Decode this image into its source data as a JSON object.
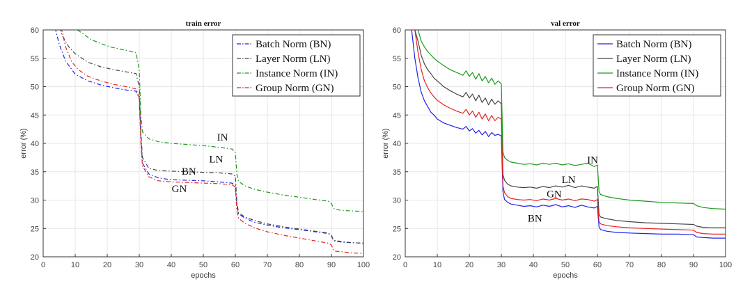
{
  "colors": {
    "bn": "#2020e8",
    "ln": "#444444",
    "in": "#1a9a1a",
    "gn": "#e82020"
  },
  "chart_data": [
    {
      "type": "line",
      "title": "train error",
      "xlabel": "epochs",
      "ylabel": "error (%)",
      "xlim": [
        0,
        100
      ],
      "ylim": [
        20,
        60
      ],
      "xticks": [
        0,
        10,
        20,
        30,
        40,
        50,
        60,
        70,
        80,
        90,
        100
      ],
      "yticks": [
        20,
        25,
        30,
        35,
        40,
        45,
        50,
        55,
        60
      ],
      "line_style": "dashdot",
      "legend_position": "top-right",
      "legend": [
        "Batch Norm (BN)",
        "Layer Norm (LN)",
        "Instance Norm (IN)",
        "Group Norm (GN)"
      ],
      "annotations": [
        {
          "text": "IN",
          "x": 56,
          "y": 40.5
        },
        {
          "text": "LN",
          "x": 54,
          "y": 36.6
        },
        {
          "text": "BN",
          "x": 45.5,
          "y": 34.5
        },
        {
          "text": "GN",
          "x": 42.5,
          "y": 31.4
        }
      ],
      "series": [
        {
          "name": "Batch Norm (BN)",
          "key": "bn",
          "x": [
            3,
            5,
            7,
            10,
            14,
            18,
            22,
            26,
            29,
            30,
            30.5,
            31,
            33,
            36,
            40,
            45,
            50,
            55,
            59,
            60,
            60.5,
            61,
            63,
            66,
            70,
            75,
            80,
            85,
            89,
            90,
            90.5,
            91,
            93,
            96,
            100
          ],
          "y": [
            62,
            57.5,
            54.5,
            52.2,
            51,
            50.3,
            49.8,
            49.4,
            49.2,
            48,
            41,
            36.5,
            34.6,
            33.9,
            33.6,
            33.5,
            33.4,
            33.2,
            33,
            32.6,
            29,
            27.6,
            26.8,
            26.1,
            25.6,
            25.1,
            24.8,
            24.4,
            24.1,
            23.7,
            23,
            22.8,
            22.6,
            22.5,
            22.4
          ]
        },
        {
          "name": "Layer Norm (LN)",
          "key": "ln",
          "x": [
            4,
            6,
            8,
            10,
            14,
            18,
            22,
            26,
            29,
            30,
            30.5,
            31,
            33,
            36,
            40,
            45,
            50,
            55,
            59,
            60,
            60.5,
            61,
            63,
            66,
            70,
            75,
            80,
            85,
            89,
            90,
            90.5,
            91,
            93,
            96,
            100
          ],
          "y": [
            62,
            59,
            57,
            55.8,
            54.3,
            53.5,
            53,
            52.6,
            52.3,
            50,
            42,
            37.5,
            35.6,
            35.2,
            35.1,
            35,
            34.9,
            34.8,
            34.6,
            34.2,
            29.5,
            27.8,
            27,
            26.4,
            25.8,
            25.3,
            24.9,
            24.5,
            24.2,
            23.8,
            23.1,
            22.9,
            22.7,
            22.5,
            22.4
          ]
        },
        {
          "name": "Instance Norm (IN)",
          "key": "in",
          "x": [
            6,
            8,
            10,
            12,
            15,
            18,
            21,
            25,
            29,
            30,
            30.5,
            31,
            33,
            36,
            40,
            45,
            50,
            55,
            59,
            60,
            60.5,
            61,
            63,
            66,
            70,
            75,
            80,
            85,
            89,
            90,
            90.5,
            91,
            93,
            96,
            100
          ],
          "y": [
            62,
            61,
            60.3,
            59.5,
            58.3,
            57.6,
            57,
            56.5,
            56,
            53,
            45,
            42,
            40.8,
            40.3,
            40,
            39.8,
            39.6,
            39.3,
            39,
            38.4,
            34.5,
            33.3,
            32.5,
            31.9,
            31.4,
            30.9,
            30.5,
            30.1,
            29.8,
            29.4,
            28.7,
            28.4,
            28.2,
            28.1,
            28
          ]
        },
        {
          "name": "Group Norm (GN)",
          "key": "gn",
          "x": [
            5,
            7,
            9,
            11,
            14,
            18,
            22,
            26,
            29,
            30,
            30.5,
            31,
            33,
            36,
            40,
            45,
            50,
            55,
            59,
            60,
            60.5,
            61,
            63,
            66,
            70,
            75,
            80,
            85,
            89,
            90,
            90.5,
            91,
            93,
            96,
            100
          ],
          "y": [
            62,
            57,
            54.3,
            53,
            51.8,
            51,
            50.4,
            50,
            49.6,
            48,
            40,
            36,
            34.1,
            33.4,
            33.2,
            33.1,
            33,
            32.9,
            32.7,
            32.3,
            28,
            26.8,
            25.9,
            25.1,
            24.4,
            23.8,
            23.3,
            22.8,
            22.4,
            22.1,
            21.3,
            21,
            20.9,
            20.7,
            20.6
          ]
        }
      ]
    },
    {
      "type": "line",
      "title": "val error",
      "xlabel": "epochs",
      "ylabel": "error (%)",
      "xlim": [
        0,
        100
      ],
      "ylim": [
        20,
        60
      ],
      "xticks": [
        0,
        10,
        20,
        30,
        40,
        50,
        60,
        70,
        80,
        90,
        100
      ],
      "yticks": [
        20,
        25,
        30,
        35,
        40,
        45,
        50,
        55,
        60
      ],
      "line_style": "solid",
      "legend_position": "top-right",
      "legend": [
        "Batch Norm (BN)",
        "Layer Norm (LN)",
        "Instance Norm (IN)",
        "Group Norm (GN)"
      ],
      "annotations": [
        {
          "text": "IN",
          "x": 58.5,
          "y": 36.5
        },
        {
          "text": "LN",
          "x": 51,
          "y": 33
        },
        {
          "text": "GN",
          "x": 46.5,
          "y": 30.5
        },
        {
          "text": "BN",
          "x": 40.5,
          "y": 26.2
        }
      ],
      "series": [
        {
          "name": "Batch Norm (BN)",
          "key": "bn",
          "x": [
            2,
            3,
            4,
            5,
            6,
            7,
            8,
            9,
            10,
            12,
            14,
            16,
            18,
            19,
            20,
            21,
            22,
            23,
            24,
            25,
            26,
            27,
            28,
            29,
            30,
            30.5,
            31,
            32,
            33,
            35,
            37,
            39,
            41,
            43,
            45,
            47,
            49,
            51,
            53,
            55,
            57,
            59,
            60,
            60.5,
            61,
            63,
            66,
            70,
            75,
            80,
            85,
            90,
            91,
            93,
            96,
            100
          ],
          "y": [
            60,
            55,
            51.5,
            49,
            47.5,
            46.5,
            45.5,
            45,
            44.3,
            43.6,
            43.2,
            42.8,
            42.5,
            43,
            42.2,
            42.6,
            41.8,
            42.3,
            41.5,
            42.1,
            41.2,
            41.9,
            41.4,
            41.6,
            41.3,
            31.5,
            30.1,
            29.6,
            29.3,
            29.1,
            28.9,
            29,
            28.8,
            29.1,
            28.9,
            29.2,
            28.8,
            29,
            28.7,
            29.1,
            28.8,
            28.6,
            28.9,
            25.3,
            24.8,
            24.5,
            24.3,
            24.2,
            24.1,
            24,
            24,
            23.9,
            23.5,
            23.4,
            23.3,
            23.3
          ]
        },
        {
          "name": "Layer Norm (LN)",
          "key": "ln",
          "x": [
            3,
            4,
            5,
            6,
            7,
            8,
            9,
            10,
            12,
            14,
            16,
            18,
            19,
            20,
            21,
            22,
            23,
            24,
            25,
            26,
            27,
            28,
            29,
            30,
            30.5,
            31,
            32,
            33,
            35,
            37,
            39,
            41,
            43,
            45,
            47,
            49,
            51,
            53,
            55,
            57,
            59,
            60,
            60.5,
            61,
            63,
            66,
            70,
            75,
            80,
            85,
            90,
            91,
            93,
            96,
            100
          ],
          "y": [
            60,
            58,
            55.5,
            54,
            53,
            52.3,
            51.5,
            51,
            50,
            49.3,
            48.7,
            48.2,
            49,
            48,
            48.7,
            47.5,
            48.5,
            47.2,
            48,
            46.8,
            47.8,
            46.9,
            47.5,
            47,
            34.5,
            33.5,
            32.8,
            32.5,
            32.3,
            32.2,
            32.3,
            32.1,
            32.4,
            32.2,
            32.5,
            32.3,
            32.6,
            32.2,
            32.5,
            32.3,
            32.1,
            32.4,
            27.5,
            27,
            26.7,
            26.4,
            26.2,
            26,
            25.9,
            25.8,
            25.7,
            25.4,
            25.2,
            25.1,
            25.1
          ]
        },
        {
          "name": "Instance Norm (IN)",
          "key": "in",
          "x": [
            4,
            5,
            6,
            7,
            8,
            9,
            10,
            12,
            14,
            16,
            18,
            19,
            20,
            21,
            22,
            23,
            24,
            25,
            26,
            27,
            28,
            29,
            30,
            30.5,
            31,
            32,
            33,
            35,
            37,
            39,
            41,
            43,
            45,
            47,
            49,
            51,
            53,
            55,
            57,
            59,
            60,
            60.5,
            61,
            63,
            66,
            70,
            75,
            80,
            85,
            90,
            91,
            93,
            96,
            100
          ],
          "y": [
            60,
            58,
            57,
            56.2,
            55.6,
            55,
            54.5,
            53.7,
            53,
            52.5,
            52,
            52.8,
            51.8,
            52.5,
            51.3,
            52.3,
            51,
            51.8,
            50.7,
            51.5,
            50.4,
            51,
            50.5,
            38.5,
            37.5,
            37,
            36.7,
            36.5,
            36.3,
            36.4,
            36.2,
            36.5,
            36.3,
            36.5,
            36.2,
            36.4,
            36.1,
            36.3,
            36.5,
            35.9,
            36.2,
            31.5,
            31,
            30.6,
            30.3,
            30,
            29.8,
            29.6,
            29.5,
            29.4,
            29,
            28.7,
            28.5,
            28.4
          ]
        },
        {
          "name": "Group Norm (GN)",
          "key": "gn",
          "x": [
            3,
            4,
            5,
            6,
            7,
            8,
            9,
            10,
            12,
            14,
            16,
            18,
            19,
            20,
            21,
            22,
            23,
            24,
            25,
            26,
            27,
            28,
            29,
            30,
            30.5,
            31,
            32,
            33,
            35,
            37,
            39,
            41,
            43,
            45,
            47,
            49,
            51,
            53,
            55,
            57,
            59,
            60,
            60.5,
            61,
            63,
            66,
            70,
            75,
            80,
            85,
            90,
            91,
            93,
            96,
            100
          ],
          "y": [
            60,
            56,
            53,
            51,
            49.8,
            48.9,
            48.2,
            47.6,
            46.8,
            46.2,
            45.7,
            45.3,
            46,
            45,
            45.7,
            44.6,
            45.5,
            44.3,
            45.2,
            44,
            44.9,
            44,
            44.6,
            44.3,
            32.5,
            31.3,
            30.6,
            30.3,
            30.1,
            30,
            30.1,
            29.9,
            30.2,
            30,
            30.3,
            30,
            30.2,
            29.9,
            30.2,
            30.1,
            29.8,
            30.1,
            26.2,
            25.8,
            25.5,
            25.3,
            25.1,
            25,
            24.9,
            24.8,
            24.7,
            24.3,
            24.1,
            24,
            24
          ]
        }
      ]
    }
  ]
}
